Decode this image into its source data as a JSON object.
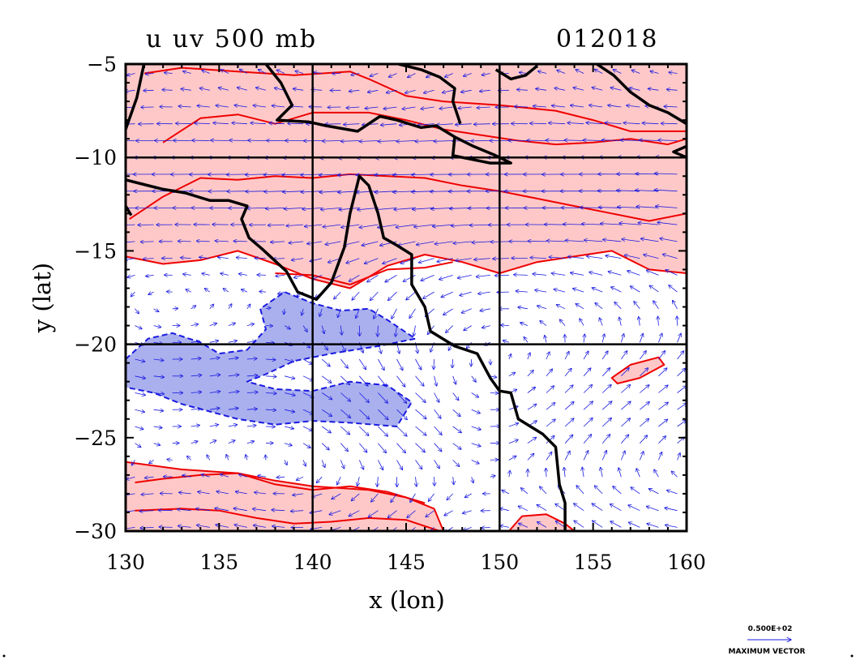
{
  "chart_data": {
    "type": "contour",
    "title_left": "u  uv 500  mb",
    "title_right": "012018",
    "xlabel": "x (lon)",
    "ylabel": "y (lat)",
    "xlim": [
      130,
      160
    ],
    "ylim": [
      -30,
      -5
    ],
    "xticks": [
      "130",
      "135",
      "140",
      "145",
      "150",
      "155",
      "160"
    ],
    "yticks": [
      "−5",
      "−10",
      "−15",
      "−20",
      "−25",
      "−30"
    ],
    "grid_lines": {
      "x": [
        140,
        150
      ],
      "y": [
        -10,
        -20
      ]
    },
    "vector_key": {
      "value": "0.500E+02",
      "label": "MAXIMUM VECTOR"
    },
    "colors": {
      "positive_fill": "#ffc8c8",
      "positive_contour": "#ee0000",
      "negative_fill": "#aab0ee",
      "negative_contour": "#1a1ae0",
      "vectors": "#1a1ae0",
      "coastline": "#000000"
    },
    "positive_regions": [
      [
        [
          130,
          -5
        ],
        [
          160,
          -5
        ],
        [
          160,
          -16.2
        ],
        [
          158,
          -16
        ],
        [
          156,
          -15
        ],
        [
          154,
          -15.3
        ],
        [
          152,
          -15.6
        ],
        [
          150,
          -16.2
        ],
        [
          148,
          -15.6
        ],
        [
          146,
          -15.2
        ],
        [
          144,
          -15.8
        ],
        [
          142,
          -17
        ],
        [
          140,
          -16.5
        ],
        [
          138,
          -15.7
        ],
        [
          136,
          -15
        ],
        [
          134,
          -15.5
        ],
        [
          132,
          -15.7
        ],
        [
          130,
          -15.3
        ]
      ],
      [
        [
          130,
          -26.3
        ],
        [
          133,
          -26.7
        ],
        [
          136,
          -26.9
        ],
        [
          138,
          -27.3
        ],
        [
          140,
          -27.6
        ],
        [
          143,
          -27.8
        ],
        [
          145,
          -28.2
        ],
        [
          146.5,
          -28.8
        ],
        [
          147,
          -30
        ],
        [
          130,
          -30
        ]
      ],
      [
        [
          150.5,
          -30
        ],
        [
          151.2,
          -29.2
        ],
        [
          152.5,
          -29.1
        ],
        [
          153.5,
          -29.6
        ],
        [
          154,
          -30
        ]
      ],
      [
        [
          156,
          -21.8
        ],
        [
          157,
          -21.1
        ],
        [
          158.5,
          -20.7
        ],
        [
          158.8,
          -21.1
        ],
        [
          157.5,
          -21.8
        ],
        [
          156.3,
          -22.1
        ]
      ]
    ],
    "positive_contours": [
      [
        [
          131,
          -5.5
        ],
        [
          133,
          -5.2
        ],
        [
          136,
          -5.4
        ],
        [
          139,
          -5.6
        ],
        [
          142,
          -5.4
        ],
        [
          143,
          -5.8
        ],
        [
          145,
          -6.7
        ],
        [
          147,
          -7
        ],
        [
          150,
          -7.2
        ],
        [
          153,
          -7.5
        ],
        [
          155,
          -8
        ],
        [
          157,
          -8.6
        ],
        [
          160,
          -8.6
        ]
      ],
      [
        [
          132,
          -9.2
        ],
        [
          134,
          -7.9
        ],
        [
          136,
          -7.7
        ],
        [
          138,
          -8.2
        ],
        [
          140,
          -7.6
        ],
        [
          143,
          -7.6
        ],
        [
          145,
          -8
        ],
        [
          147,
          -8.5
        ],
        [
          149,
          -8.8
        ],
        [
          151,
          -9.1
        ],
        [
          153,
          -9.3
        ],
        [
          155,
          -9.2
        ],
        [
          157,
          -9
        ],
        [
          159,
          -9.3
        ],
        [
          160,
          -9
        ]
      ],
      [
        [
          130.2,
          -13.3
        ],
        [
          132,
          -12.1
        ],
        [
          134,
          -11.1
        ],
        [
          136,
          -11.2
        ],
        [
          138,
          -11
        ],
        [
          140,
          -11.1
        ],
        [
          142,
          -10.9
        ],
        [
          144,
          -11
        ],
        [
          146,
          -11.1
        ],
        [
          148,
          -11.5
        ],
        [
          150,
          -11.8
        ],
        [
          152,
          -12.2
        ],
        [
          154,
          -12.6
        ],
        [
          156,
          -13
        ],
        [
          158,
          -13.4
        ],
        [
          160,
          -13
        ]
      ],
      [
        [
          138,
          -16.2
        ],
        [
          140,
          -16.3
        ],
        [
          142,
          -16.8
        ],
        [
          144,
          -16
        ],
        [
          146,
          -15.9
        ],
        [
          147.5,
          -15.6
        ]
      ],
      [
        [
          130.5,
          -27.4
        ],
        [
          132,
          -27.2
        ],
        [
          134,
          -27
        ],
        [
          136,
          -26.9
        ],
        [
          138,
          -27.5
        ],
        [
          140,
          -27.8
        ],
        [
          142,
          -27.6
        ],
        [
          144,
          -27.9
        ],
        [
          146,
          -28.5
        ]
      ],
      [
        [
          130.5,
          -28.9
        ],
        [
          133,
          -28.8
        ],
        [
          135,
          -28.9
        ],
        [
          137,
          -29.3
        ],
        [
          139,
          -29.6
        ],
        [
          141,
          -29.5
        ],
        [
          143,
          -29.3
        ],
        [
          145,
          -29.4
        ],
        [
          146.8,
          -30
        ]
      ]
    ],
    "negative_regions": [
      [
        [
          130,
          -20.8
        ],
        [
          131.2,
          -19.7
        ],
        [
          132.5,
          -19.4
        ],
        [
          134,
          -19.9
        ],
        [
          135,
          -20.5
        ],
        [
          136.5,
          -20.3
        ],
        [
          137.5,
          -19.2
        ],
        [
          137.2,
          -18.1
        ],
        [
          138.5,
          -17.2
        ],
        [
          140,
          -17.8
        ],
        [
          141.5,
          -18.2
        ],
        [
          143,
          -18.1
        ],
        [
          144,
          -18.7
        ],
        [
          145.5,
          -19.7
        ],
        [
          143.5,
          -20.1
        ],
        [
          141,
          -20.5
        ],
        [
          139,
          -20.9
        ],
        [
          137.5,
          -21.6
        ],
        [
          136.5,
          -22
        ],
        [
          138,
          -22.4
        ],
        [
          140,
          -22.5
        ],
        [
          142,
          -22
        ],
        [
          144,
          -22.2
        ],
        [
          145.3,
          -23.1
        ],
        [
          144.5,
          -24.4
        ],
        [
          142,
          -24.2
        ],
        [
          140,
          -24.1
        ],
        [
          138,
          -24.3
        ],
        [
          136,
          -24
        ],
        [
          134.5,
          -23.6
        ],
        [
          133,
          -23.2
        ],
        [
          131.5,
          -22.6
        ],
        [
          130,
          -22.3
        ]
      ]
    ],
    "coastline": [
      [
        [
          130,
          -11.2
        ],
        [
          130.8,
          -11.4
        ],
        [
          132,
          -11.7
        ],
        [
          133.2,
          -11.9
        ],
        [
          134.5,
          -12.3
        ],
        [
          135.5,
          -12.3
        ],
        [
          136.5,
          -12.6
        ],
        [
          136.2,
          -13.3
        ],
        [
          136.6,
          -14.3
        ],
        [
          137.3,
          -14.9
        ],
        [
          138.6,
          -16.1
        ],
        [
          139.2,
          -17.2
        ],
        [
          140.2,
          -17.6
        ],
        [
          141,
          -16.7
        ],
        [
          141.7,
          -14.8
        ],
        [
          142,
          -13
        ],
        [
          142.5,
          -11
        ],
        [
          143,
          -11.5
        ],
        [
          143.5,
          -13
        ],
        [
          143.8,
          -14.3
        ],
        [
          144.5,
          -14.7
        ],
        [
          145.3,
          -15.2
        ],
        [
          145.3,
          -16.8
        ],
        [
          146,
          -18
        ],
        [
          146.3,
          -19.3
        ],
        [
          147.6,
          -20.1
        ],
        [
          148.8,
          -20.5
        ],
        [
          149.5,
          -21.8
        ],
        [
          150,
          -22.5
        ],
        [
          150.6,
          -22.6
        ],
        [
          151,
          -24
        ],
        [
          152.3,
          -24.8
        ],
        [
          153,
          -25.5
        ],
        [
          153.2,
          -27.5
        ],
        [
          153.5,
          -28.5
        ],
        [
          153.5,
          -30
        ]
      ],
      [
        [
          137.5,
          -5
        ],
        [
          138.3,
          -6
        ],
        [
          138.9,
          -7.2
        ],
        [
          138.1,
          -8
        ],
        [
          139.8,
          -8.1
        ],
        [
          140.7,
          -8.3
        ],
        [
          142.4,
          -8.6
        ],
        [
          143.6,
          -7.8
        ],
        [
          144.5,
          -8
        ],
        [
          145.8,
          -8.4
        ],
        [
          146.6,
          -8.3
        ],
        [
          147.6,
          -8.9
        ],
        [
          148.6,
          -9.4
        ],
        [
          149.8,
          -9.9
        ],
        [
          150.6,
          -10.3
        ],
        [
          149.5,
          -10.3
        ],
        [
          149,
          -10.2
        ],
        [
          147.5,
          -9.9
        ],
        [
          147.6,
          -8.9
        ]
      ],
      [
        [
          144.6,
          -5
        ],
        [
          145.8,
          -5.3
        ],
        [
          146.8,
          -5.7
        ],
        [
          147.6,
          -6.3
        ],
        [
          147.5,
          -7
        ],
        [
          147.9,
          -8.2
        ]
      ],
      [
        [
          149.8,
          -5.3
        ],
        [
          150.6,
          -5.8
        ],
        [
          151.4,
          -5.6
        ],
        [
          152,
          -5.1
        ]
      ],
      [
        [
          155.2,
          -5
        ],
        [
          156.1,
          -5.6
        ],
        [
          157,
          -6.5
        ],
        [
          158,
          -7.2
        ],
        [
          159,
          -7.6
        ],
        [
          160,
          -8.2
        ]
      ],
      [
        [
          131,
          -4.9
        ],
        [
          130.6,
          -6.8
        ],
        [
          130,
          -8.5
        ]
      ],
      [
        [
          160,
          -9.4
        ],
        [
          159.3,
          -9.7
        ],
        [
          160,
          -10
        ]
      ],
      [
        [
          130,
          -12.6
        ],
        [
          130.3,
          -13.1
        ]
      ]
    ]
  }
}
